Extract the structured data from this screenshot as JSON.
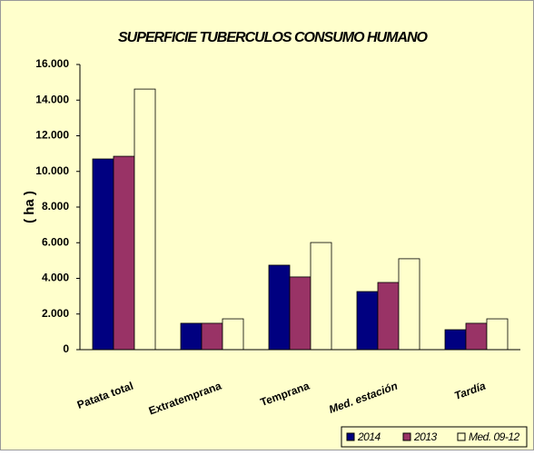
{
  "chart_data": {
    "type": "bar",
    "title": "SUPERFICIE TUBERCULOS CONSUMO HUMANO",
    "y_label": "( ha )",
    "categories": [
      "Patata total",
      "Extratemprana",
      "Temprana",
      "Med. estación",
      "Tardía"
    ],
    "series": [
      {
        "name": "2014",
        "color": "#000080",
        "values": [
          10700,
          1480,
          4740,
          3260,
          1120
        ]
      },
      {
        "name": "2013",
        "color": "#993366",
        "values": [
          10850,
          1480,
          4080,
          3770,
          1480
        ]
      },
      {
        "name": "Med. 09-12",
        "color": "#ffffcc",
        "values": [
          14620,
          1730,
          6010,
          5100,
          1730
        ]
      }
    ],
    "ylim": [
      0,
      16000
    ],
    "yticks": [
      0,
      {
        "value": 2000,
        "label": "2.000"
      },
      {
        "value": 4000,
        "label": "4.000"
      },
      {
        "value": 6000,
        "label": "6.000"
      },
      {
        "value": 8000,
        "label": "8.000"
      },
      {
        "value": 10000,
        "label": "10.000"
      },
      {
        "value": 12000,
        "label": "12.000"
      },
      {
        "value": 14000,
        "label": "14.000"
      },
      {
        "value": 16000,
        "label": "16.000"
      }
    ],
    "legend": "bottom-right"
  }
}
